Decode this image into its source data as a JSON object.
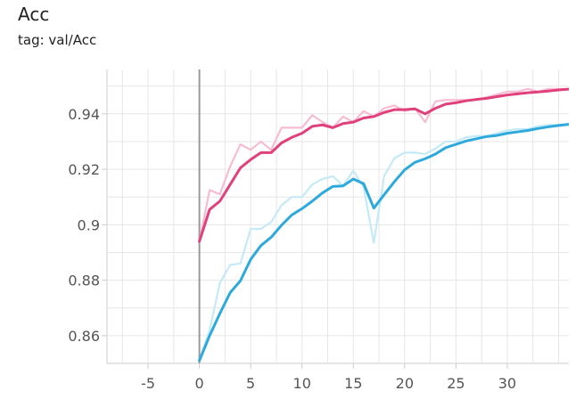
{
  "card": {
    "title": "Acc",
    "tag": "tag: val/Acc"
  },
  "chart_data": {
    "type": "line",
    "title": "Acc",
    "subtitle": "tag: val/Acc",
    "xlabel": "",
    "ylabel": "",
    "xlim": [
      -9,
      36
    ],
    "ylim": [
      0.85,
      0.956
    ],
    "x_ticks": [
      -5,
      0,
      5,
      10,
      15,
      20,
      25,
      30
    ],
    "x_tick_labels": [
      "-5",
      "0",
      "5",
      "10",
      "15",
      "20",
      "25",
      "30"
    ],
    "y_ticks": [
      0.86,
      0.88,
      0.9,
      0.92,
      0.94
    ],
    "y_tick_labels": [
      "0.86",
      "0.88",
      "0.9",
      "0.92",
      "0.94"
    ],
    "grid": true,
    "legend": "none",
    "zero_line": 0,
    "series": [
      {
        "color": "#e0407b",
        "raw_color": "#f7bcd1",
        "x": [
          0,
          1,
          2,
          3,
          4,
          5,
          6,
          7,
          8,
          9,
          10,
          11,
          12,
          13,
          14,
          15,
          16,
          17,
          18,
          19,
          20,
          21,
          22,
          23,
          24,
          25,
          26,
          27,
          28,
          29,
          30,
          31,
          32,
          33,
          34,
          35,
          36
        ],
        "raw": [
          0.894,
          0.9125,
          0.911,
          0.921,
          0.929,
          0.927,
          0.93,
          0.927,
          0.935,
          0.935,
          0.935,
          0.9395,
          0.937,
          0.935,
          0.939,
          0.937,
          0.941,
          0.939,
          0.942,
          0.943,
          0.941,
          0.942,
          0.937,
          0.9445,
          0.945,
          0.945,
          0.945,
          0.945,
          0.946,
          0.947,
          0.948,
          0.948,
          0.949,
          0.948,
          0.949,
          0.949,
          0.949
        ],
        "smoothed": [
          0.894,
          0.9055,
          0.9085,
          0.9145,
          0.9205,
          0.9235,
          0.926,
          0.926,
          0.9295,
          0.9315,
          0.933,
          0.9355,
          0.936,
          0.935,
          0.9365,
          0.937,
          0.9385,
          0.939,
          0.9405,
          0.9415,
          0.9415,
          0.9418,
          0.94,
          0.942,
          0.9435,
          0.944,
          0.9447,
          0.9452,
          0.9456,
          0.9462,
          0.9468,
          0.9472,
          0.9476,
          0.9479,
          0.9482,
          0.9486,
          0.9489
        ]
      },
      {
        "color": "#2ea9dc",
        "raw_color": "#c5e9f7",
        "x": [
          0,
          1,
          2,
          3,
          4,
          5,
          6,
          7,
          8,
          9,
          10,
          11,
          12,
          13,
          14,
          15,
          16,
          17,
          18,
          19,
          20,
          21,
          22,
          23,
          24,
          25,
          26,
          27,
          28,
          29,
          30,
          31,
          32,
          33,
          34,
          35,
          36
        ],
        "raw": [
          0.851,
          0.862,
          0.879,
          0.8855,
          0.886,
          0.8985,
          0.8985,
          0.901,
          0.907,
          0.91,
          0.91,
          0.9145,
          0.9165,
          0.9175,
          0.914,
          0.9195,
          0.9135,
          0.8935,
          0.9175,
          0.924,
          0.926,
          0.926,
          0.9255,
          0.9275,
          0.93,
          0.93,
          0.9315,
          0.932,
          0.932,
          0.933,
          0.934,
          0.9345,
          0.9345,
          0.9355,
          0.936,
          0.936,
          0.9365
        ],
        "smoothed": [
          0.851,
          0.86,
          0.868,
          0.8755,
          0.8798,
          0.8875,
          0.8925,
          0.8955,
          0.8998,
          0.9035,
          0.9058,
          0.9085,
          0.9115,
          0.9138,
          0.914,
          0.9165,
          0.9148,
          0.906,
          0.9108,
          0.9155,
          0.9198,
          0.9225,
          0.9238,
          0.9255,
          0.9278,
          0.929,
          0.9302,
          0.931,
          0.9318,
          0.9322,
          0.933,
          0.9335,
          0.934,
          0.9347,
          0.9353,
          0.9358,
          0.9362
        ]
      }
    ]
  }
}
